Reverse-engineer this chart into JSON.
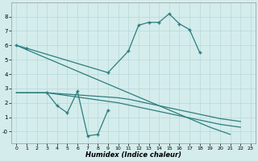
{
  "xlabel": "Humidex (Indice chaleur)",
  "bg_color": "#d4ecec",
  "line_color": "#2d7d7d",
  "grid_color": "#b8d8d8",
  "ylim": [
    -0.8,
    9.0
  ],
  "xlim": [
    -0.5,
    23.5
  ],
  "yticks": [
    0,
    1,
    2,
    3,
    4,
    5,
    6,
    7,
    8
  ],
  "xticks": [
    0,
    1,
    2,
    3,
    4,
    5,
    6,
    7,
    8,
    9,
    10,
    11,
    12,
    13,
    14,
    15,
    16,
    17,
    18,
    19,
    20,
    21,
    22,
    23
  ],
  "curve1_x": [
    0,
    1,
    9,
    11,
    12,
    13,
    14,
    15,
    16,
    17,
    18
  ],
  "curve1_y": [
    6.0,
    5.8,
    4.1,
    5.6,
    7.4,
    7.6,
    7.6,
    8.2,
    7.5,
    7.1,
    5.5
  ],
  "curve2_x": [
    3,
    4,
    5,
    6,
    7,
    8,
    9
  ],
  "curve2_y": [
    2.7,
    1.8,
    1.3,
    2.8,
    -0.3,
    -0.2,
    1.5
  ],
  "curve3_x": [
    0,
    1,
    2,
    3,
    4,
    5,
    6,
    7,
    8,
    9,
    10,
    11,
    12,
    13,
    14,
    15,
    16,
    17,
    18,
    19,
    20,
    21
  ],
  "curve3_y": [
    6.0,
    5.7,
    5.4,
    5.1,
    4.8,
    4.5,
    4.2,
    3.9,
    3.6,
    3.3,
    3.0,
    2.7,
    2.4,
    2.1,
    1.8,
    1.5,
    1.2,
    0.9,
    0.6,
    0.3,
    0.05,
    -0.2
  ],
  "curve4_x": [
    0,
    3,
    4,
    5,
    6,
    7,
    8,
    9,
    10,
    11,
    12,
    13,
    14,
    15,
    16,
    17,
    18,
    19,
    20,
    21,
    22
  ],
  "curve4_y": [
    2.7,
    2.7,
    2.65,
    2.6,
    2.55,
    2.5,
    2.45,
    2.4,
    2.35,
    2.25,
    2.1,
    1.95,
    1.8,
    1.65,
    1.5,
    1.35,
    1.2,
    1.05,
    0.9,
    0.8,
    0.7
  ],
  "curve5_x": [
    0,
    3,
    4,
    5,
    6,
    7,
    8,
    9,
    10,
    11,
    12,
    13,
    14,
    15,
    16,
    17,
    18,
    19,
    20,
    21,
    22
  ],
  "curve5_y": [
    2.7,
    2.7,
    2.6,
    2.5,
    2.4,
    2.3,
    2.2,
    2.1,
    2.0,
    1.85,
    1.7,
    1.55,
    1.4,
    1.25,
    1.1,
    0.95,
    0.8,
    0.65,
    0.5,
    0.4,
    0.3
  ],
  "ytick_labels": [
    "-0",
    "1",
    "2",
    "3",
    "4",
    "5",
    "6",
    "7",
    "8"
  ]
}
